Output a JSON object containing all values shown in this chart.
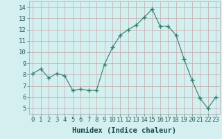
{
  "x": [
    0,
    1,
    2,
    3,
    4,
    5,
    6,
    7,
    8,
    9,
    10,
    11,
    12,
    13,
    14,
    15,
    16,
    17,
    18,
    19,
    20,
    21,
    22,
    23
  ],
  "y": [
    8.1,
    8.5,
    7.7,
    8.1,
    7.9,
    6.6,
    6.7,
    6.6,
    6.6,
    8.9,
    10.4,
    11.5,
    12.0,
    12.4,
    13.1,
    13.8,
    12.3,
    12.3,
    11.5,
    9.4,
    7.5,
    5.9,
    5.0,
    6.0
  ],
  "line_color": "#2e7d6e",
  "marker": "+",
  "marker_size": 4,
  "background_color": "#d4efef",
  "grid_color": "#c4aaaa",
  "xlabel": "Humidex (Indice chaleur)",
  "xlabel_fontsize": 7.5,
  "tick_fontsize": 6.5,
  "ylim": [
    4.5,
    14.5
  ],
  "xlim": [
    -0.5,
    23.5
  ],
  "yticks": [
    5,
    6,
    7,
    8,
    9,
    10,
    11,
    12,
    13,
    14
  ],
  "xticks": [
    0,
    1,
    2,
    3,
    4,
    5,
    6,
    7,
    8,
    9,
    10,
    11,
    12,
    13,
    14,
    15,
    16,
    17,
    18,
    19,
    20,
    21,
    22,
    23
  ],
  "figwidth": 3.2,
  "figheight": 2.0,
  "dpi": 100
}
